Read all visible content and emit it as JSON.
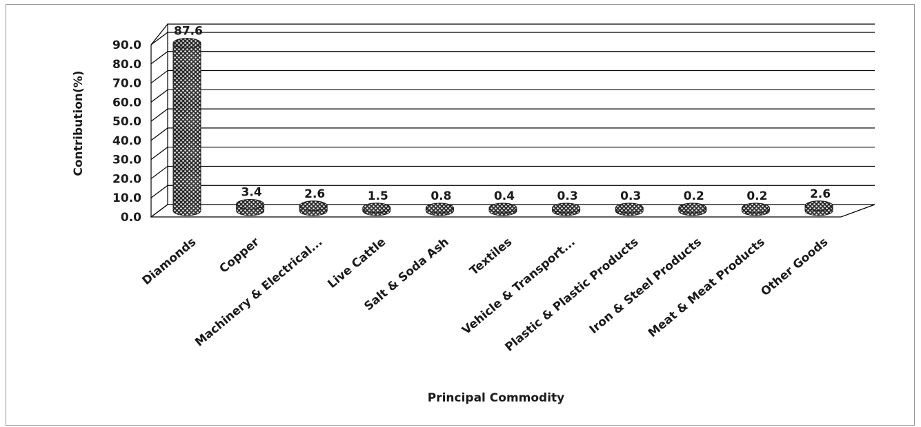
{
  "chart_data": {
    "type": "bar",
    "title": "",
    "xlabel": "Principal Commodity",
    "ylabel": "Contribution(%)",
    "ylim": [
      0,
      90
    ],
    "yticks": [
      "0.0",
      "10.0",
      "20.0",
      "30.0",
      "40.0",
      "50.0",
      "60.0",
      "70.0",
      "80.0",
      "90.0"
    ],
    "grid": true,
    "categories": [
      "Diamonds",
      "Copper",
      "Machinery & Electrical...",
      "Live Cattle",
      "Salt & Soda Ash",
      "Textiles",
      "Vehicle & Transport...",
      "Plastic & Plastic Products",
      "Iron & Steel Products",
      "Meat & Meat Products",
      "Other Goods"
    ],
    "values": [
      87.6,
      3.4,
      2.6,
      1.5,
      0.8,
      0.4,
      0.3,
      0.3,
      0.2,
      0.2,
      2.6
    ],
    "data_labels": [
      "87.6",
      "3.4",
      "2.6",
      "1.5",
      "0.8",
      "0.4",
      "0.3",
      "0.3",
      "0.2",
      "0.2",
      "2.6"
    ],
    "bar_color": "#3a3a3a",
    "bar_pattern_color": "#f0f0f0",
    "gridline_color": "#000000"
  }
}
